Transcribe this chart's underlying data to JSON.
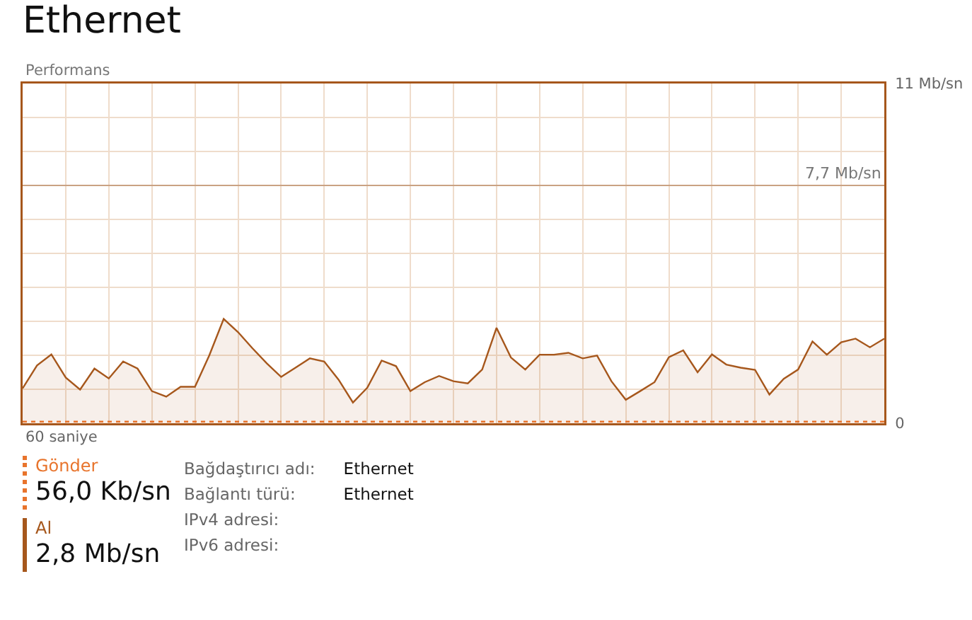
{
  "chart_data": {
    "type": "area",
    "title": "Ethernet",
    "ylabel": "Performans",
    "categories": [
      null,
      null,
      null,
      null,
      null,
      null,
      null,
      null,
      null,
      null,
      null,
      null,
      null,
      null,
      null,
      null,
      null,
      null,
      null,
      null,
      null,
      null,
      null,
      null,
      null,
      null,
      null,
      null,
      null,
      null,
      null,
      null,
      null,
      null,
      null,
      null,
      null,
      null,
      null,
      null,
      null,
      null,
      null,
      null,
      null,
      null,
      null,
      null,
      null,
      null,
      null,
      null,
      null,
      null,
      null,
      null,
      null,
      null,
      null,
      null,
      null
    ],
    "series": [
      {
        "name": "Gönder",
        "type": "line",
        "line_style": "dotted",
        "color": "#e8742c",
        "values": [
          0.05,
          0.05,
          0.05,
          0.05,
          0.05,
          0.05,
          0.05,
          0.05,
          0.05,
          0.05,
          0.05,
          0.05,
          0.05,
          0.05,
          0.05,
          0.05,
          0.05,
          0.05,
          0.05,
          0.05,
          0.05,
          0.05,
          0.05,
          0.05,
          0.05,
          0.05,
          0.05,
          0.05,
          0.05,
          0.05,
          0.05,
          0.05,
          0.05,
          0.05,
          0.05,
          0.05,
          0.05,
          0.05,
          0.05,
          0.05,
          0.05,
          0.05,
          0.05,
          0.05,
          0.05,
          0.05,
          0.05,
          0.05,
          0.05,
          0.05,
          0.05,
          0.05,
          0.05,
          0.05,
          0.05,
          0.05,
          0.05,
          0.05,
          0.05,
          0.05,
          0.05
        ]
      },
      {
        "name": "Al",
        "type": "area",
        "line_style": "solid",
        "color": "#a6571c",
        "values": [
          1.13,
          1.87,
          2.23,
          1.48,
          1.09,
          1.77,
          1.45,
          2.0,
          1.77,
          1.04,
          0.86,
          1.18,
          1.18,
          2.2,
          3.38,
          2.95,
          2.43,
          1.94,
          1.5,
          1.8,
          2.1,
          2.0,
          1.41,
          0.67,
          1.15,
          2.03,
          1.85,
          1.04,
          1.33,
          1.53,
          1.36,
          1.29,
          1.74,
          3.09,
          2.13,
          1.74,
          2.22,
          2.22,
          2.28,
          2.1,
          2.19,
          1.36,
          0.76,
          1.04,
          1.33,
          2.14,
          2.36,
          1.65,
          2.23,
          1.9,
          1.8,
          1.73,
          0.93,
          1.44,
          1.74,
          2.65,
          2.22,
          2.62,
          2.74,
          2.46,
          2.74
        ]
      }
    ],
    "ylim": [
      0,
      11
    ],
    "yticks": [
      {
        "value": 0,
        "label": "0"
      },
      {
        "value": 1.1,
        "label": null
      },
      {
        "value": 2.2,
        "label": null
      },
      {
        "value": 3.3,
        "label": null
      },
      {
        "value": 4.4,
        "label": null
      },
      {
        "value": 5.5,
        "label": null
      },
      {
        "value": 6.6,
        "label": null
      },
      {
        "value": 7.7,
        "label": null
      },
      {
        "value": 8.8,
        "label": null
      },
      {
        "value": 9.9,
        "label": null
      },
      {
        "value": 11,
        "label": "11 Mb/sn"
      }
    ],
    "ref_lines": [
      {
        "axis": "y",
        "value": 7.7,
        "label": "7,7 Mb/sn",
        "color": "#c9a283"
      }
    ],
    "grid": true,
    "legend": "bottom left",
    "annotations": [
      "60 saniye",
      "56,0 Kb/sn",
      "2,8 Mb/sn",
      "Bağdaştırıcı adı:",
      "Bağlantı türü:",
      "IPv4 adresi:",
      "IPv6 adresi:",
      "Ethernet",
      "Ethernet"
    ]
  }
}
